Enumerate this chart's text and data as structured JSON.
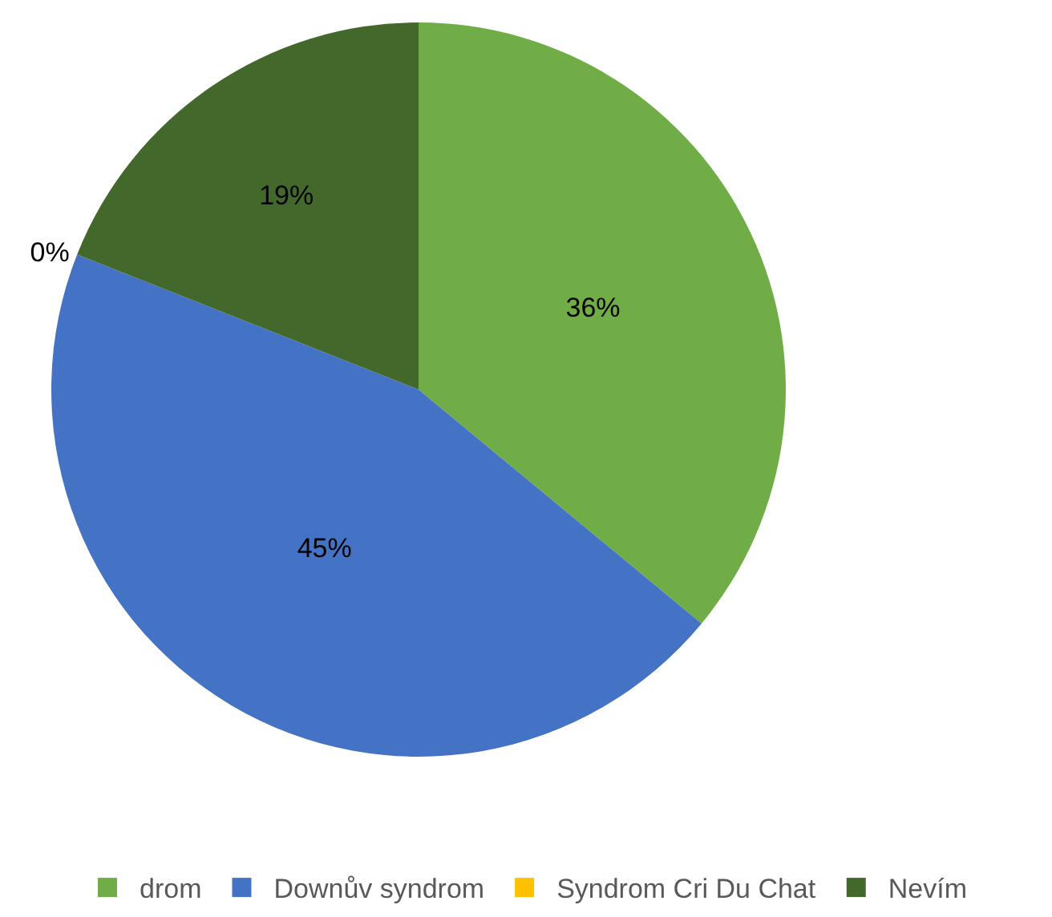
{
  "chart_data": {
    "type": "pie",
    "categories": [
      "drom",
      "Downův syndrom",
      "Syndrom Cri Du Chat",
      "Nevím"
    ],
    "values": [
      36,
      45,
      0,
      19
    ],
    "colors": [
      "#70ad47",
      "#4472c4",
      "#ffc000",
      "#43682b"
    ],
    "value_labels": [
      "36%",
      "45%",
      "0%",
      "19%"
    ],
    "legend": "bottom"
  }
}
